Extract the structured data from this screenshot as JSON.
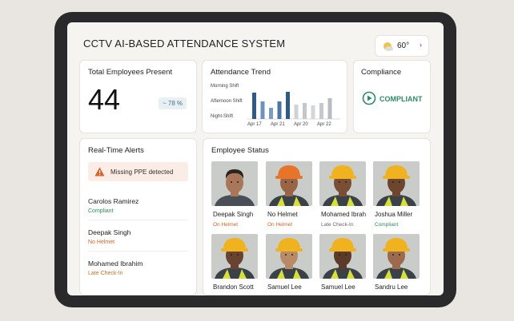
{
  "header": {
    "title": "CCTV AI-BASED ATTENDANCE SYSTEM",
    "weather": "60°"
  },
  "present_card": {
    "title": "Total Employees Present",
    "count": "44",
    "trend": "~ 78 %"
  },
  "trend_card": {
    "title": "Attendance Trend",
    "shifts": [
      "Morning Shift",
      "Afternoon Shift",
      "Night-Shift"
    ],
    "dates": [
      "Apr 17",
      "Apr 21",
      "Apr 20",
      "Apr 22"
    ],
    "bars": [
      33,
      22,
      14,
      22,
      34,
      18,
      20,
      17,
      20,
      26
    ],
    "bar_colors": [
      "#2e5a86",
      "#6f92bd",
      "#7c9cc4",
      "#4c74a3",
      "#2e5a86",
      "#cfd2d6",
      "#c3c7cc",
      "#d3d6da",
      "#c5c9ce",
      "#b8bcc2"
    ]
  },
  "compliance_card": {
    "title": "Compliance",
    "status": "COMPLIANT"
  },
  "alerts": {
    "title": "Real-Time Alerts",
    "banner": "Missing PPE detected",
    "items": [
      {
        "name": "Carolos Ramirez",
        "status": "Compliant",
        "color": "#2f8a5c"
      },
      {
        "name": "Deepak Singh",
        "status": "No Helmet",
        "color": "#d0622a"
      },
      {
        "name": "Mohamed Ibrahim",
        "status": "Late Check-In",
        "color": "#c8702e"
      }
    ]
  },
  "employees": {
    "title": "Employee Status",
    "people": [
      {
        "name": "Deepak Singh",
        "status": "On Helmet",
        "color": "#d0622a",
        "helmet": null,
        "skin": "#a87658"
      },
      {
        "name": "No Helmet",
        "status": "On Helmet",
        "color": "#d0622a",
        "helmet": "#e8742a",
        "skin": "#9a6546"
      },
      {
        "name": "Mohamed Ibrah",
        "status": "Late Check-In",
        "color": "#666666",
        "helmet": "#f0b21f",
        "skin": "#7a4f36"
      },
      {
        "name": "Joshua Miller",
        "status": "Compliant",
        "color": "#2f8a5c",
        "helmet": "#f0b21f",
        "skin": "#6e4630"
      },
      {
        "name": "Brandon Scott",
        "helmet": "#f0b21f",
        "skin": "#6a4330"
      },
      {
        "name": "Samuel Lee",
        "helmet": "#f0b21f",
        "skin": "#b88a66"
      },
      {
        "name": "Samuel Lee",
        "helmet": "#f0b21f",
        "skin": "#5c3a28"
      },
      {
        "name": "Sandru Lee",
        "helmet": "#f0b21f",
        "skin": "#9c6a4c"
      }
    ]
  }
}
